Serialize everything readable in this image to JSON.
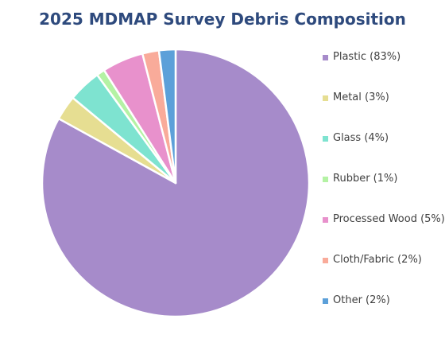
{
  "chart_data": {
    "type": "pie",
    "title": "2025 MDMAP Survey Debris Composition",
    "start_angle_deg": 0,
    "direction": "clockwise",
    "slices": [
      {
        "label": "Plastic (83%)",
        "name": "Plastic",
        "value": 83,
        "color": "#a68bca"
      },
      {
        "label": "Metal (3%)",
        "name": "Metal",
        "value": 3,
        "color": "#e6de92"
      },
      {
        "label": "Glass (4%)",
        "name": "Glass",
        "value": 4,
        "color": "#7ee3d0"
      },
      {
        "label": "Rubber (1%)",
        "name": "Rubber",
        "value": 1,
        "color": "#b4f2a4"
      },
      {
        "label": "Processed Wood (5%)",
        "name": "Processed Wood",
        "value": 5,
        "color": "#e891cc"
      },
      {
        "label": "Cloth/Fabric (2%)",
        "name": "Cloth/Fabric",
        "value": 2,
        "color": "#f9ab9a"
      },
      {
        "label": "Other (2%)",
        "name": "Other",
        "value": 2,
        "color": "#5ca0d9"
      }
    ],
    "legend_position": "right"
  }
}
